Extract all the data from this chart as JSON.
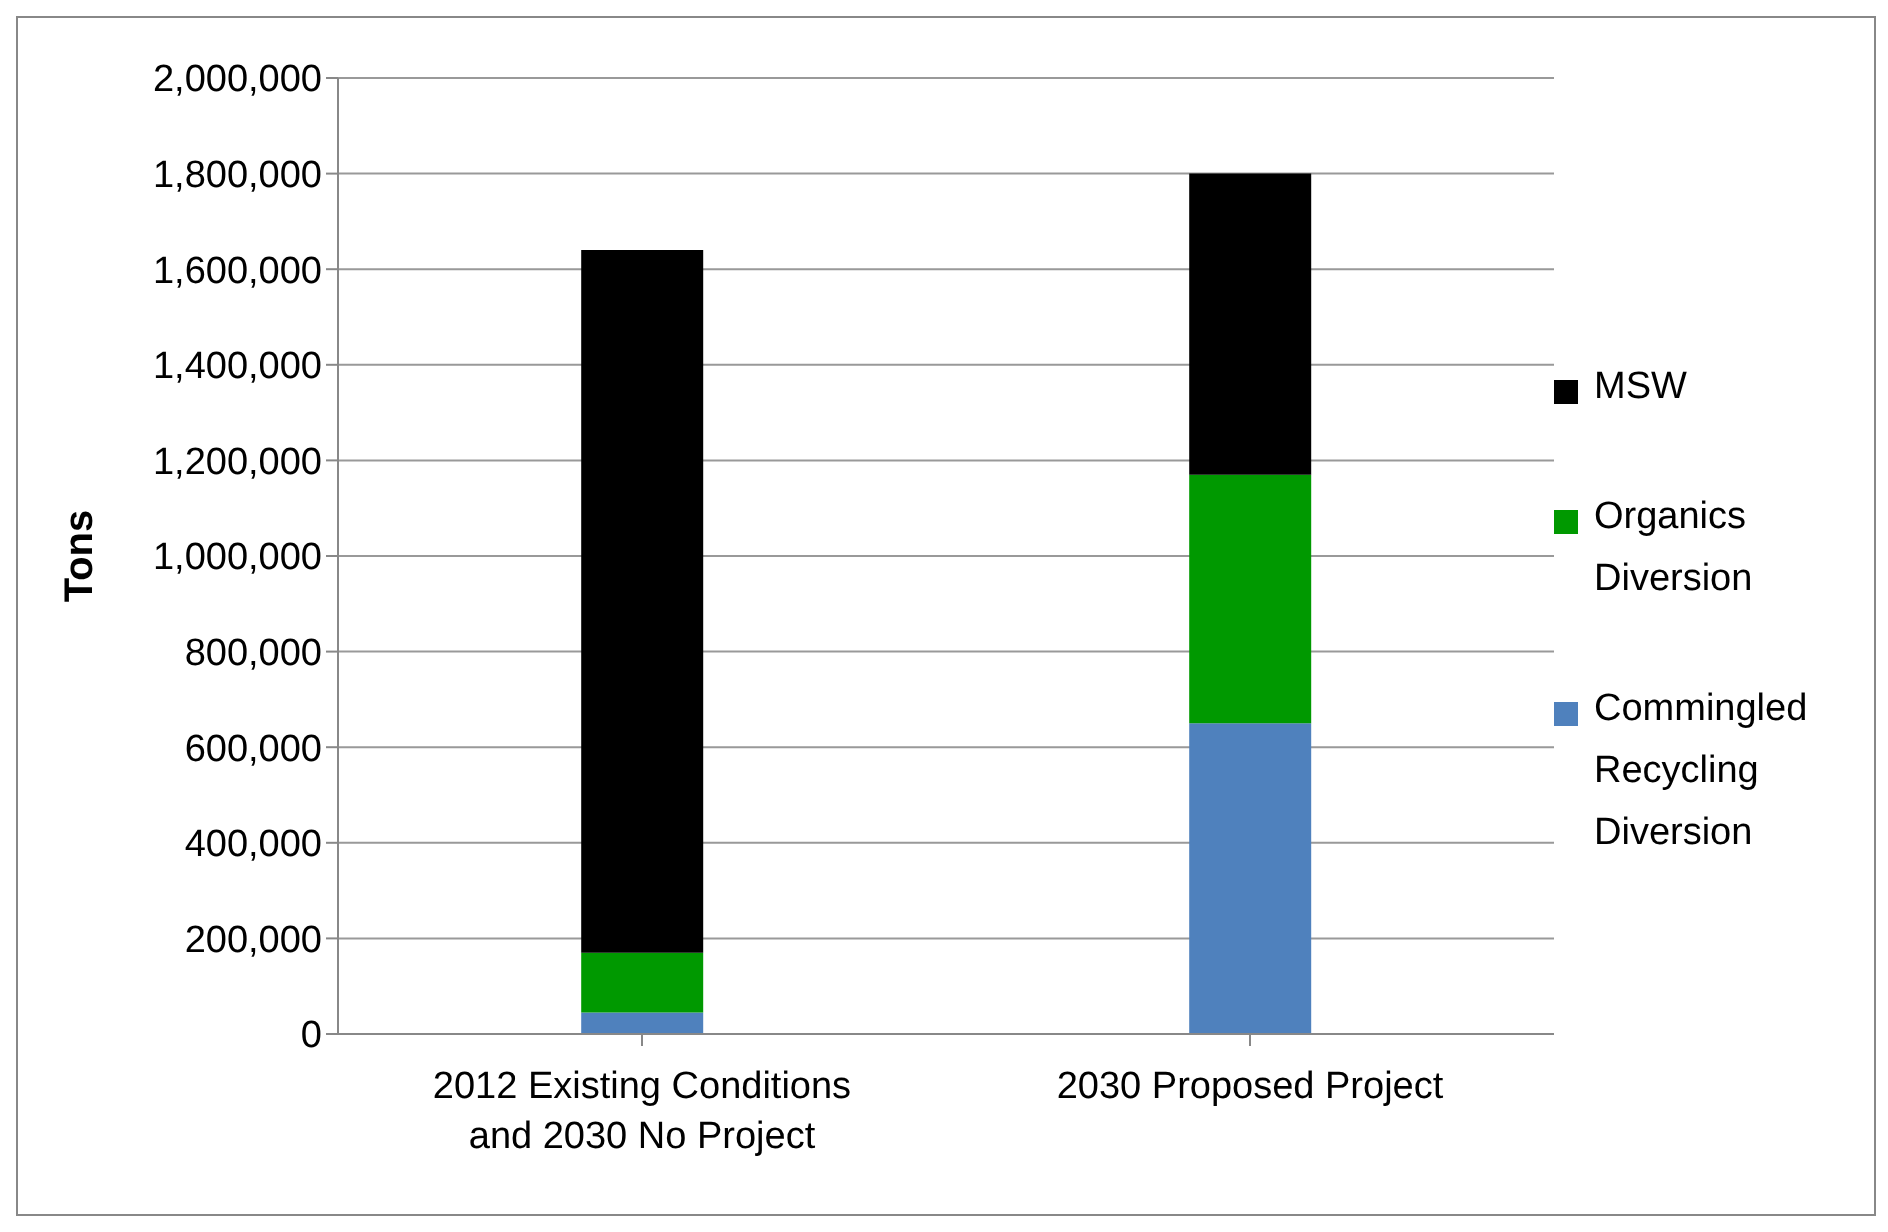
{
  "chart_data": {
    "type": "bar",
    "ylabel": "Tons",
    "categories": [
      "2012 Existing Conditions and 2030 No Project",
      "2030 Proposed Project"
    ],
    "series": [
      {
        "name": "Commingled Recycling Diversion",
        "color": "#4f81bd",
        "values": [
          45000,
          650000
        ]
      },
      {
        "name": "Organics Diversion",
        "color": "#009900",
        "values": [
          125000,
          520000
        ]
      },
      {
        "name": "MSW",
        "color": "#000000",
        "values": [
          1470000,
          630000
        ]
      }
    ],
    "stacked": true,
    "ylim": [
      0,
      2000000
    ],
    "yticks": [
      0,
      {
        "value": 200000,
        "label": "200,000"
      },
      {
        "value": 400000,
        "label": "400,000"
      },
      {
        "value": 600000,
        "label": "600,000"
      },
      {
        "value": 800000,
        "label": "800,000"
      },
      {
        "value": 1000000,
        "label": "1,000,000"
      },
      {
        "value": 1200000,
        "label": "1,200,000"
      },
      {
        "value": 1400000,
        "label": "1,400,000"
      },
      {
        "value": 1600000,
        "label": "1,600,000"
      },
      {
        "value": 1800000,
        "label": "1,800,000"
      },
      {
        "value": 2000000,
        "label": "2,000,000"
      }
    ],
    "grid": "y",
    "legend": "right"
  }
}
